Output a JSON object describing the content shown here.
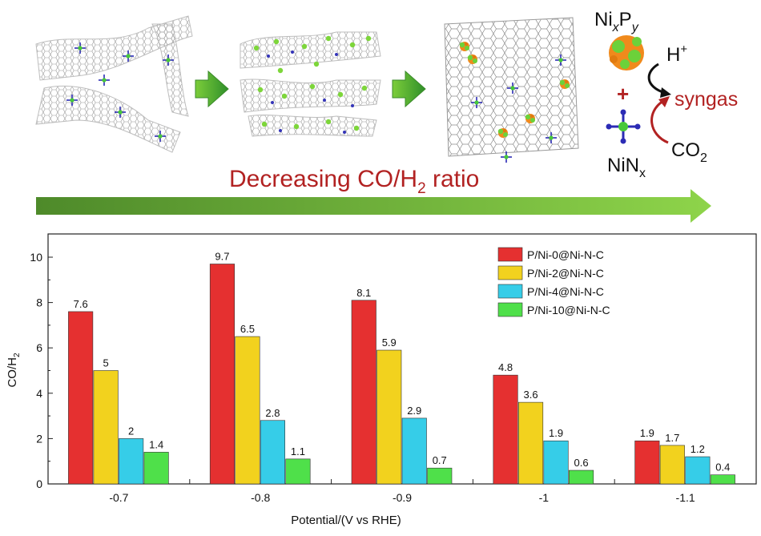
{
  "header": {
    "label_nixpy": {
      "ni": "Ni",
      "x": "x",
      "p": "P",
      "y": "y"
    },
    "label_hplus": {
      "h": "H",
      "plus": "+"
    },
    "label_syngas": "syngas",
    "label_plus_sign": "+",
    "label_co2": {
      "co": "CO",
      "two": "2"
    },
    "label_ninx": {
      "ni": "NiN",
      "x": "x"
    },
    "decreasing": {
      "prefix": "Decreasing CO/H",
      "sub": "2",
      "suffix": " ratio"
    },
    "colors": {
      "red": "#b22222",
      "green_dark": "#4e8a2a",
      "green_light": "#8ed44a"
    }
  },
  "chart_data": {
    "type": "bar",
    "categories": [
      "-0.7",
      "-0.8",
      "-0.9",
      "-1",
      "-1.1"
    ],
    "series": [
      {
        "name": "P/Ni-0@Ni-N-C",
        "values": [
          7.6,
          9.7,
          8.1,
          4.8,
          1.9
        ],
        "labels": [
          "7.6",
          "9.7",
          "8.1",
          "4.8",
          "1.9"
        ],
        "color": "#e53030"
      },
      {
        "name": "P/Ni-2@Ni-N-C",
        "values": [
          5,
          6.5,
          5.9,
          3.6,
          1.7
        ],
        "labels": [
          "5",
          "6.5",
          "5.9",
          "3.6",
          "1.7"
        ],
        "color": "#f2d21e"
      },
      {
        "name": "P/Ni-4@Ni-N-C",
        "values": [
          2,
          2.8,
          2.9,
          1.9,
          1.2
        ],
        "labels": [
          "2",
          "2.8",
          "2.9",
          "1.9",
          "1.2"
        ],
        "color": "#36cde8"
      },
      {
        "name": "P/Ni-10@Ni-N-C",
        "values": [
          1.4,
          1.1,
          0.7,
          0.6,
          0.4
        ],
        "labels": [
          "1.4",
          "1.1",
          "0.7",
          "0.6",
          "0.4"
        ],
        "color": "#4fe04a"
      }
    ],
    "ylabel": {
      "base": "CO/H",
      "sub": "2"
    },
    "xlabel": "Potential/(V vs RHE)",
    "ylim": [
      0,
      11
    ],
    "yticks": [
      "0",
      "2",
      "4",
      "6",
      "8",
      "10"
    ],
    "grid": false,
    "legend": "top-right"
  }
}
